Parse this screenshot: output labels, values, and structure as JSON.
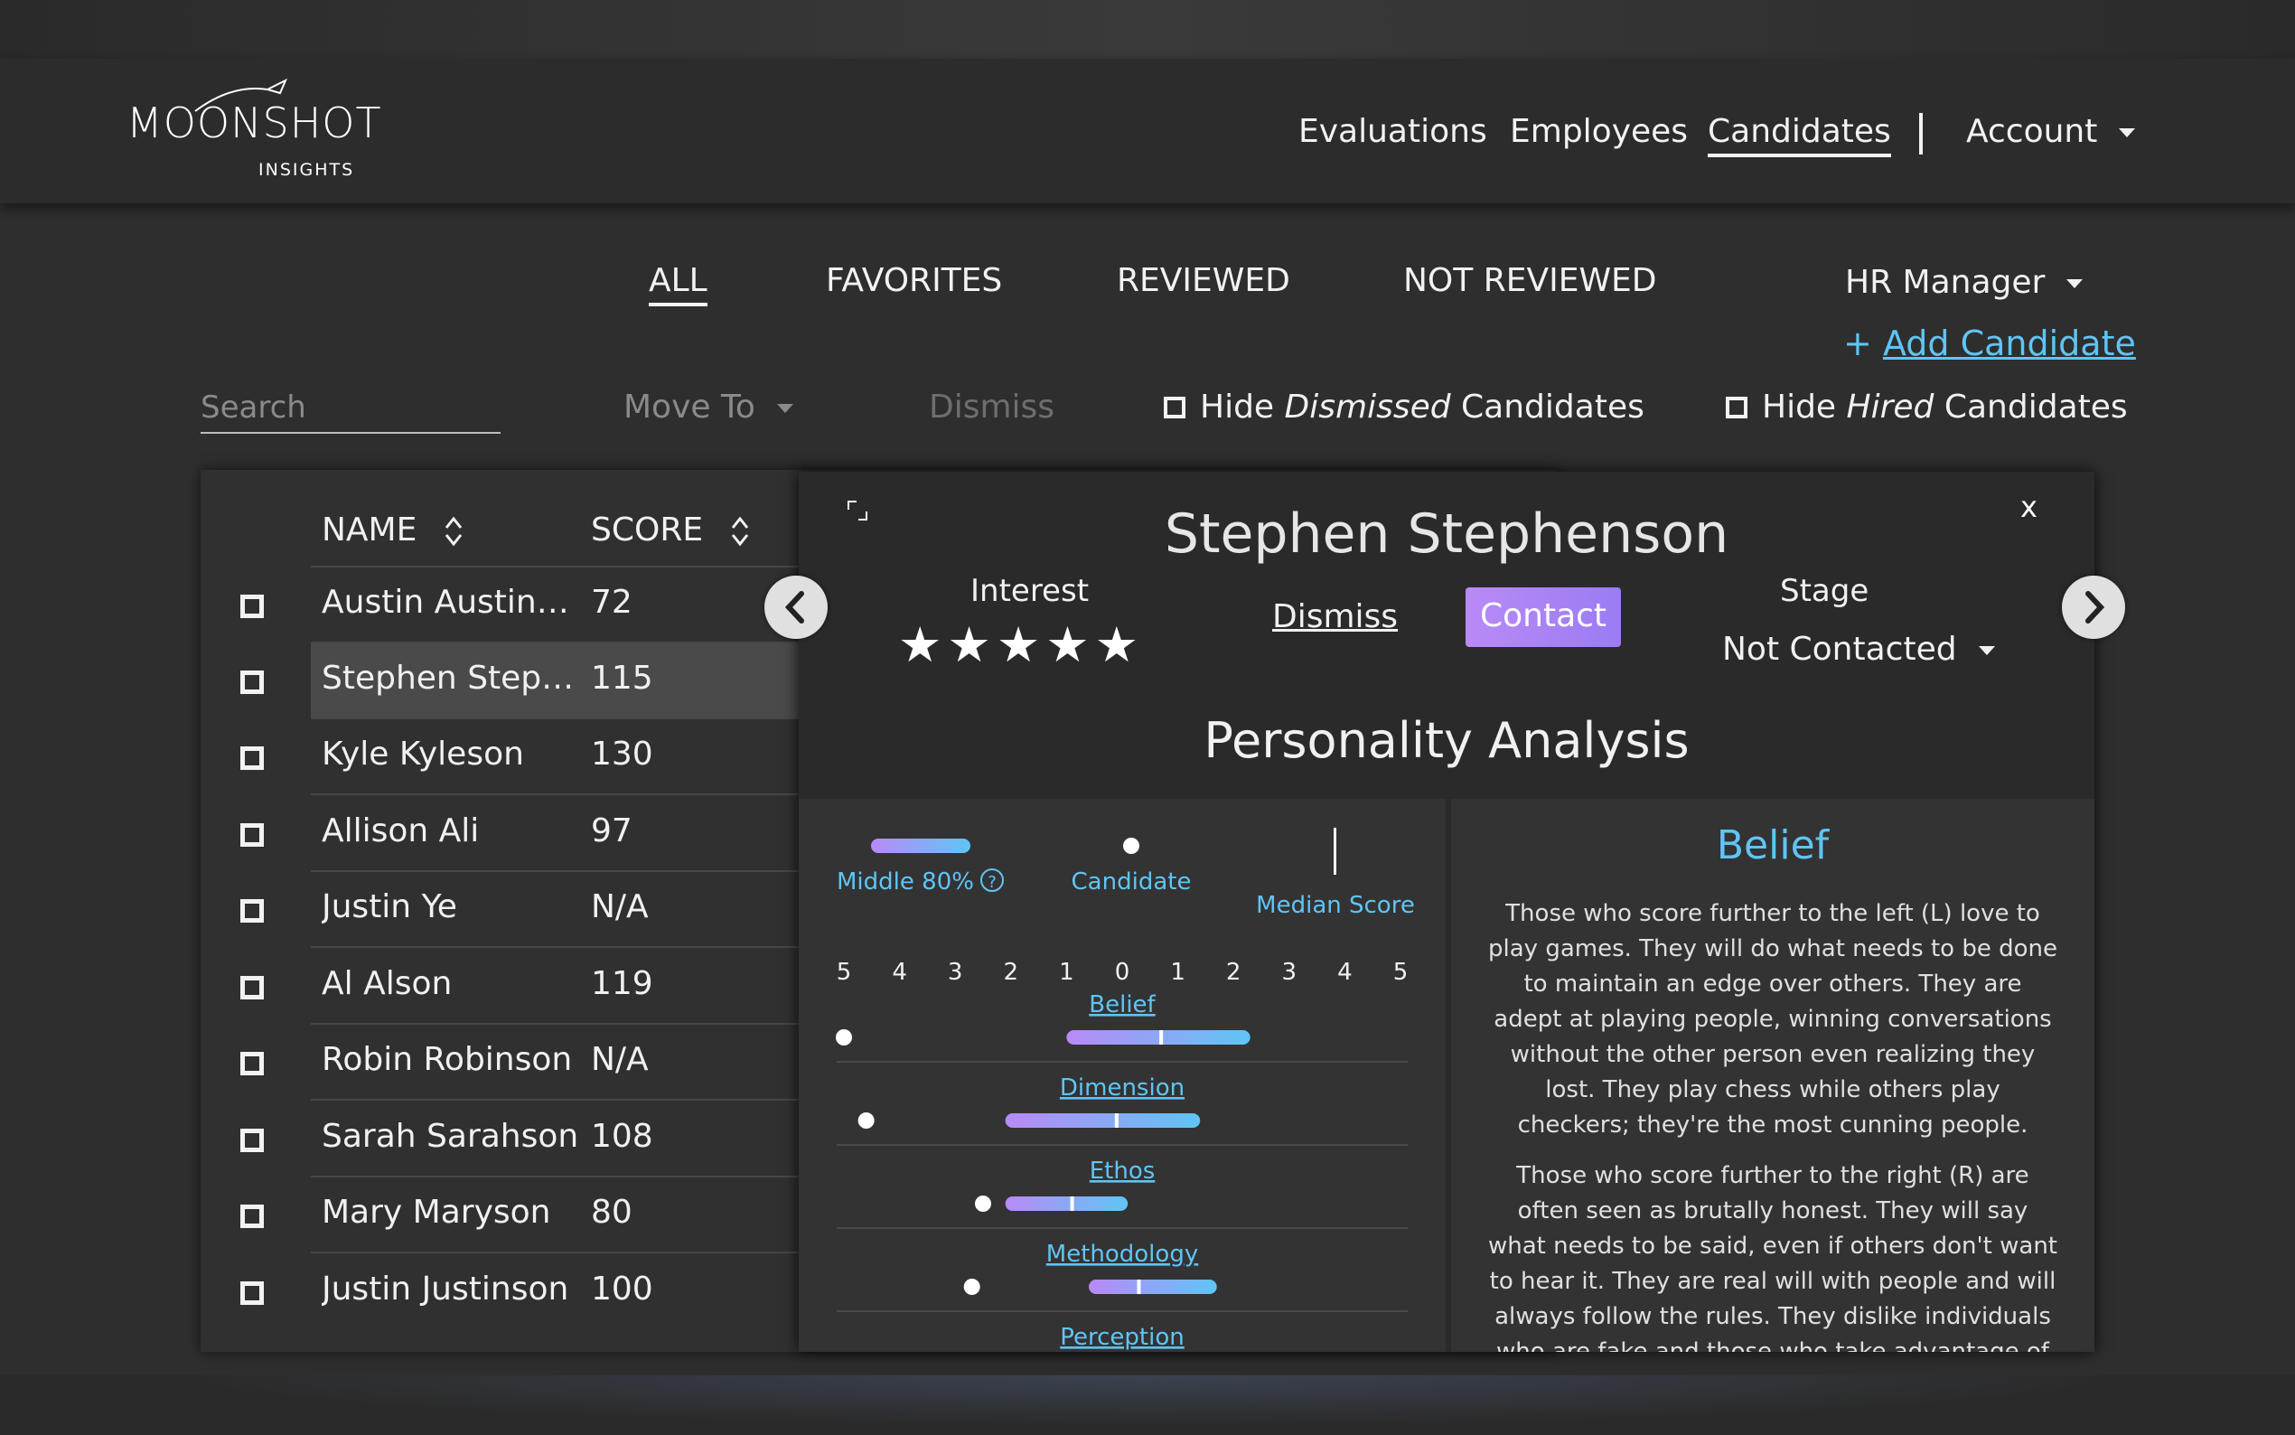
{
  "brand": {
    "name": "MOONSHOT",
    "sub": "INSIGHTS"
  },
  "nav": {
    "evaluations": "Evaluations",
    "employees": "Employees",
    "candidates": "Candidates",
    "account": "Account"
  },
  "filters": {
    "all": "ALL",
    "favorites": "FAVORITES",
    "reviewed": "REVIEWED",
    "not_reviewed": "NOT REVIEWED"
  },
  "role": "HR Manager",
  "add_candidate": {
    "plus": "+",
    "label": "Add Candidate"
  },
  "toolbar": {
    "search_placeholder": "Search",
    "move_to": "Move To",
    "dismiss": "Dismiss",
    "hide_dismissed_pre": "Hide",
    "hide_dismissed_em": "Dismissed",
    "hide_dismissed_post": "Candidates",
    "hide_hired_pre": "Hide",
    "hide_hired_em": "Hired",
    "hide_hired_post": "Candidates"
  },
  "table": {
    "col_name": "NAME",
    "col_score": "SCORE",
    "rows": [
      {
        "name": "Austin Austinson",
        "score": "72"
      },
      {
        "name": "Stephen Stephenson",
        "score": "115"
      },
      {
        "name": "Kyle Kyleson",
        "score": "130"
      },
      {
        "name": "Allison Ali",
        "score": "97"
      },
      {
        "name": "Justin Ye",
        "score": "N/A"
      },
      {
        "name": "Al Alson",
        "score": "119"
      },
      {
        "name": "Robin Robinson",
        "score": "N/A"
      },
      {
        "name": "Sarah Sarahson",
        "score": "108"
      },
      {
        "name": "Mary Maryson",
        "score": "80"
      },
      {
        "name": "Justin Justinson",
        "score": "100"
      }
    ]
  },
  "modal": {
    "close": "x",
    "candidate_name": "Stephen Stephenson",
    "interest_label": "Interest",
    "stars": "★★★★★",
    "dismiss": "Dismiss",
    "contact": "Contact",
    "stage_label": "Stage",
    "stage_value": "Not Contacted",
    "section_title": "Personality Analysis"
  },
  "chart_data": {
    "type": "range",
    "legend": {
      "middle": "Middle 80%",
      "candidate": "Candidate",
      "median": "Median Score"
    },
    "scale_labels": [
      "5",
      "4",
      "3",
      "2",
      "1",
      "0",
      "1",
      "2",
      "3",
      "4",
      "5"
    ],
    "scale": [
      -5,
      5
    ],
    "traits": [
      {
        "name": "Belief",
        "candidate": -5,
        "range": [
          -1,
          2.3
        ],
        "median": 0.7
      },
      {
        "name": "Dimension",
        "candidate": -4.6,
        "range": [
          -2.1,
          1.4
        ],
        "median": -0.1
      },
      {
        "name": "Ethos",
        "candidate": -2.5,
        "range": [
          -2.1,
          0.1
        ],
        "median": -0.9
      },
      {
        "name": "Methodology",
        "candidate": -2.7,
        "range": [
          -0.6,
          1.7
        ],
        "median": 0.3
      },
      {
        "name": "Perception",
        "candidate": null,
        "range": null,
        "median": null
      }
    ]
  },
  "belief": {
    "title": "Belief",
    "para1": "Those who score further to the left (L) love to play games. They will do what needs to be done to maintain an edge over others. They are adept at playing people, winning conversations without the other person even realizing they lost. They play chess while others play checkers; they're the most cunning people.",
    "para2": "Those who score further to the right (R) are often seen as brutally honest. They will say what needs to be said, even if others don't want to hear it. They are real will with people and will always follow the rules. They dislike individuals who are fake and those who take advantage of others."
  },
  "colors": {
    "accent_blue": "#5fc5f5",
    "gradient_start": "#b98af6",
    "gradient_end": "#5fc5f5"
  },
  "icons": {
    "prev": "chevron-left-icon",
    "next": "chevron-right-icon",
    "sort": "sort-icon",
    "expand": "expand-icon",
    "help": "help-circle-icon"
  }
}
